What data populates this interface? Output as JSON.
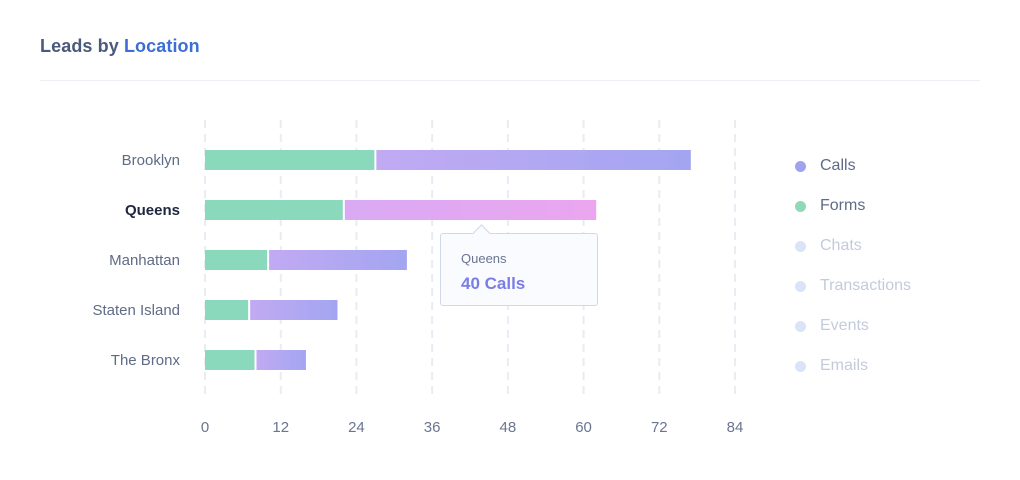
{
  "header": {
    "title_prefix": "Leads by",
    "title_highlight": "Location"
  },
  "tooltip": {
    "category": "Queens",
    "value_text": "40 Calls"
  },
  "legend": [
    {
      "name": "Calls",
      "color": "#9fa3ef",
      "active": true
    },
    {
      "name": "Forms",
      "color": "#8fd9b9",
      "active": true
    },
    {
      "name": "Chats",
      "color": "#d9e4f8",
      "active": false
    },
    {
      "name": "Transactions",
      "color": "#d9e4f8",
      "active": false
    },
    {
      "name": "Events",
      "color": "#d9e4f8",
      "active": false
    },
    {
      "name": "Emails",
      "color": "#d9e4f8",
      "active": false
    }
  ],
  "colors": {
    "forms": "#8ad9bc",
    "calls_start": "#c1aaf3",
    "calls_end": "#a3a5f1",
    "highlight_start": "#d9aaf3",
    "highlight_end": "#eba6ef",
    "grid": "#e8ecf3",
    "axis_text": "#6a7590",
    "label_text": "#5f6b87",
    "label_active": "#1f2740"
  },
  "chart_data": {
    "type": "bar",
    "orientation": "horizontal",
    "stacked": true,
    "categories": [
      "Brooklyn",
      "Queens",
      "Manhattan",
      "Staten Island",
      "The Bronx"
    ],
    "highlighted_category": "Queens",
    "series": [
      {
        "name": "Forms",
        "values": [
          27,
          22,
          10,
          7,
          8
        ]
      },
      {
        "name": "Calls",
        "values": [
          50,
          40,
          22,
          14,
          8
        ]
      }
    ],
    "xlim": [
      0,
      84
    ],
    "xticks": [
      0,
      12,
      24,
      36,
      48,
      60,
      72,
      84
    ],
    "grid": true,
    "legend_position": "right"
  }
}
